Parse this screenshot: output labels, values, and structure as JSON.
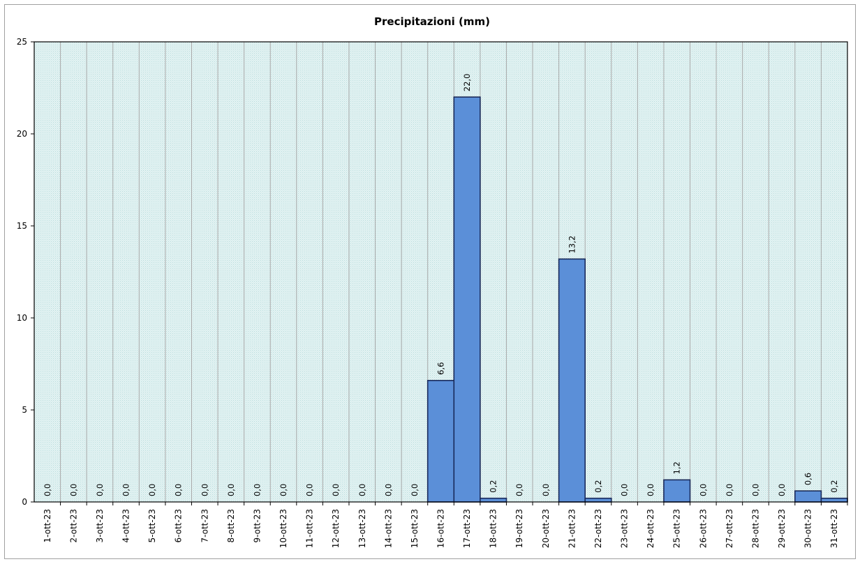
{
  "chart_data": {
    "type": "bar",
    "title": "Precipitazioni  (mm)",
    "xlabel": "",
    "ylabel": "",
    "ylim": [
      0,
      25
    ],
    "yticks": [
      0,
      5,
      10,
      15,
      20,
      25
    ],
    "grid": true,
    "legend": "none",
    "bar_color": "#5b8fd8",
    "bar_edge_color": "#1a2a5a",
    "plot_background": "#dcefef",
    "categories": [
      "1-ott-23",
      "2-ott-23",
      "3-ott-23",
      "4-ott-23",
      "5-ott-23",
      "6-ott-23",
      "7-ott-23",
      "8-ott-23",
      "9-ott-23",
      "10-ott-23",
      "11-ott-23",
      "12-ott-23",
      "13-ott-23",
      "14-ott-23",
      "15-ott-23",
      "16-ott-23",
      "17-ott-23",
      "18-ott-23",
      "19-ott-23",
      "20-ott-23",
      "21-ott-23",
      "22-ott-23",
      "23-ott-23",
      "24-ott-23",
      "25-ott-23",
      "26-ott-23",
      "27-ott-23",
      "28-ott-23",
      "29-ott-23",
      "30-ott-23",
      "31-ott-23"
    ],
    "values": [
      0,
      0,
      0,
      0,
      0,
      0,
      0,
      0,
      0,
      0,
      0,
      0,
      0,
      0,
      0,
      6.6,
      22.0,
      0.2,
      0,
      0,
      13.2,
      0.2,
      0,
      0,
      1.2,
      0,
      0,
      0,
      0,
      0.6,
      0.2
    ],
    "data_labels": [
      "0,0",
      "0,0",
      "0,0",
      "0,0",
      "0,0",
      "0,0",
      "0,0",
      "0,0",
      "0,0",
      "0,0",
      "0,0",
      "0,0",
      "0,0",
      "0,0",
      "0,0",
      "6,6",
      "22,0",
      "0,2",
      "0,0",
      "0,0",
      "13,2",
      "0,2",
      "0,0",
      "0,0",
      "1,2",
      "0,0",
      "0,0",
      "0,0",
      "0,0",
      "0,6",
      "0,2"
    ]
  }
}
